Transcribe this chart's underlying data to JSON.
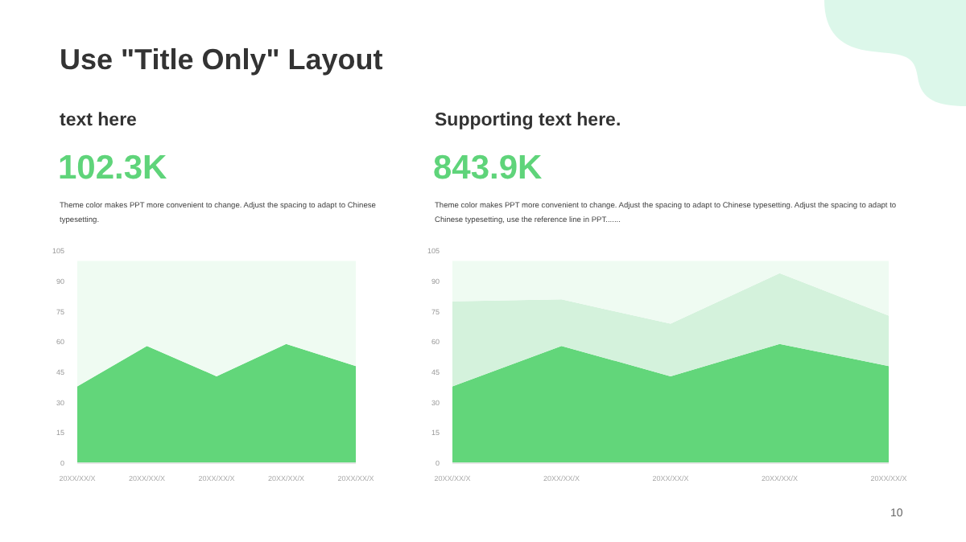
{
  "chart_data": [
    {
      "type": "area",
      "stacked": true,
      "title": "text here",
      "subtitle": "102.3K",
      "annotations": [
        "Use \"Title Only\" Layout",
        "Theme color makes PPT more convenient to change. Adjust the spacing to adapt to Chinese typesetting."
      ],
      "categories": [
        "20XX/XX/X",
        "20XX/XX/X",
        "20XX/XX/X",
        "20XX/XX/X",
        "20XX/XX/X"
      ],
      "series": [
        {
          "color": "#62d67a",
          "values": [
            38,
            58,
            43,
            59,
            48
          ]
        },
        {
          "color": "#effbf2",
          "values": [
            62,
            42,
            57,
            41,
            52
          ]
        }
      ],
      "ylim": [
        0,
        105
      ],
      "yticks": [
        0,
        15,
        30,
        45,
        60,
        75,
        90,
        105
      ]
    },
    {
      "type": "area",
      "stacked": true,
      "title": "Supporting text here.",
      "subtitle": "843.9K",
      "annotations": [
        "Theme color makes PPT more convenient to change. Adjust the spacing to adapt to Chinese typesetting. Adjust the spacing to adapt to Chinese typesetting, use the reference line in PPT.......",
        "10"
      ],
      "categories": [
        "20XX/XX/X",
        "20XX/XX/X",
        "20XX/XX/X",
        "20XX/XX/X",
        "20XX/XX/X"
      ],
      "series": [
        {
          "color": "#62d67a",
          "values": [
            38,
            58,
            43,
            59,
            48
          ]
        },
        {
          "color": "#d4f2dc",
          "values": [
            42,
            23,
            26,
            35,
            25
          ]
        },
        {
          "color": "#effbf2",
          "values": [
            20,
            19,
            31,
            6,
            27
          ]
        }
      ],
      "ylim": [
        0,
        105
      ],
      "yticks": [
        0,
        15,
        30,
        45,
        60,
        75,
        90,
        105
      ]
    }
  ]
}
